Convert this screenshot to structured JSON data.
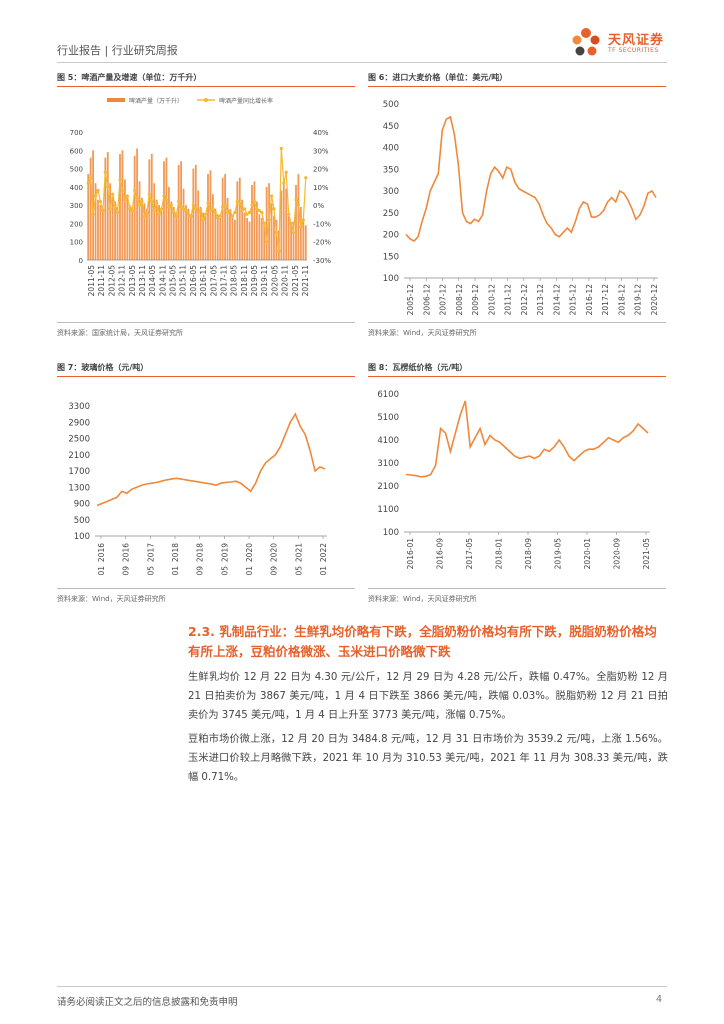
{
  "header": {
    "title": "行业报告 | 行业研究周报"
  },
  "logo": {
    "name_cn": "天风证券",
    "name_en": "TF SECURITIES"
  },
  "figures": {
    "fig5": {
      "title": "图 5：啤酒产量及增速（单位：万千升）",
      "source": "资料来源：国家统计局，天风证券研究所"
    },
    "fig6": {
      "title": "图 6：进口大麦价格（单位：美元/吨）",
      "source": "资料来源：Wind，天风证券研究所"
    },
    "fig7": {
      "title": "图 7：玻璃价格（元/吨）",
      "source": "资料来源：Wind，天风证券研究所"
    },
    "fig8": {
      "title": "图 8：瓦楞纸价格（元/吨）",
      "source": "资料来源：Wind，天风证券研究所"
    }
  },
  "section": {
    "title": "2.3. 乳制品行业：生鲜乳均价略有下跌，全脂奶粉价格均有所下跌，脱脂奶粉价格均有所上涨，豆粕价格微涨、玉米进口价略微下跌",
    "para1": "生鲜乳均价 12 月 22 日为 4.30 元/公斤，12 月 29 日为 4.28 元/公斤，跌幅 0.47%。全脂奶粉 12 月 21 日拍卖价为 3867 美元/吨，1 月 4 日下跌至 3866 美元/吨，跌幅 0.03%。脱脂奶粉 12 月 21 日拍卖价为 3745 美元/吨，1 月 4 日上升至 3773 美元/吨，涨幅 0.75%。",
    "para2": "豆粕市场价微上涨，12 月 20 日为 3484.8 元/吨，12 月 31 日市场价为 3539.2 元/吨，上涨 1.56%。玉米进口价较上月略微下跌，2021 年 10 月为 310.53 美元/吨，2021 年 11 月为 308.33 美元/吨，跌幅 0.71%。"
  },
  "footer": {
    "disclaimer": "请务必阅读正文之后的信息披露和免责申明",
    "page": "4"
  },
  "colors": {
    "accent": "#e8612c",
    "bar": "#f0883a",
    "line2": "#f5b82e"
  },
  "chart_data": [
    {
      "id": "fig5",
      "type": "bar+line",
      "title": "啤酒产量及增速（单位：万千升）",
      "legend": [
        "啤酒产量（万千升）",
        "啤酒产量同比增长率"
      ],
      "y_left": {
        "ticks": [
          0,
          100,
          200,
          300,
          400,
          500,
          600,
          700
        ],
        "lim": [
          0,
          700
        ]
      },
      "y_right": {
        "ticks": [
          "40%",
          "30%",
          "20%",
          "10%",
          "0%",
          "-10%",
          "-20%",
          "-30%"
        ],
        "lim": [
          -30,
          40
        ]
      },
      "x_ticks": [
        "2011-05",
        "2011-11",
        "2012-05",
        "2012-11",
        "2013-05",
        "2013-11",
        "2014-05",
        "2014-11",
        "2015-05",
        "2015-11",
        "2016-05",
        "2016-11",
        "2017-05",
        "2017-11",
        "2018-05",
        "2018-11",
        "2019-05",
        "2019-11",
        "2020-05",
        "2020-11",
        "2021-05",
        "2021-11"
      ],
      "bar_values": [
        470,
        560,
        600,
        420,
        330,
        300,
        280,
        560,
        590,
        420,
        340,
        320,
        290,
        580,
        600,
        440,
        350,
        300,
        290,
        570,
        610,
        430,
        340,
        310,
        280,
        550,
        580,
        420,
        330,
        300,
        270,
        540,
        560,
        400,
        320,
        290,
        260,
        520,
        540,
        390,
        300,
        280,
        250,
        500,
        520,
        380,
        290,
        260,
        240,
        470,
        490,
        360,
        280,
        250,
        230,
        450,
        470,
        340,
        270,
        240,
        220,
        430,
        450,
        330,
        260,
        230,
        210,
        410,
        430,
        320,
        250,
        230,
        200,
        400,
        420,
        310,
        240,
        220,
        160,
        380,
        430,
        390,
        240,
        200,
        210,
        410,
        470,
        290,
        220,
        190
      ],
      "line_values": [
        12,
        15,
        -5,
        5,
        8,
        2,
        -3,
        18,
        10,
        -2,
        6,
        0,
        -4,
        14,
        8,
        3,
        5,
        -2,
        -3,
        8,
        4,
        0,
        2,
        -6,
        -4,
        6,
        2,
        -3,
        1,
        -5,
        -2,
        5,
        3,
        -1,
        0,
        -4,
        -6,
        2,
        -1,
        -2,
        -3,
        -5,
        -6,
        0,
        -2,
        -4,
        -3,
        -8,
        -5,
        1,
        -3,
        -2,
        -4,
        -7,
        -6,
        -1,
        0,
        -4,
        -3,
        -6,
        -4,
        2,
        1,
        -3,
        -2,
        -5,
        -4,
        0,
        2,
        -2,
        -3,
        -4,
        -10,
        -20,
        -8,
        5,
        -2,
        -15,
        -25,
        31,
        12,
        18,
        -5,
        -10,
        -15,
        3,
        0,
        -12,
        -8,
        15
      ]
    },
    {
      "id": "fig6",
      "type": "line",
      "title": "进口大麦价格（单位：美元/吨）",
      "y_ticks": [
        100,
        150,
        200,
        250,
        300,
        350,
        400,
        450,
        500
      ],
      "ylim": [
        100,
        500
      ],
      "x_ticks": [
        "2005-12",
        "2006-12",
        "2007-12",
        "2008-12",
        "2009-12",
        "2010-12",
        "2011-12",
        "2012-12",
        "2013-12",
        "2014-12",
        "2015-12",
        "2016-12",
        "2017-12",
        "2018-12",
        "2019-12",
        "2020-12"
      ],
      "x_range": [
        "2005-12",
        "2021-06"
      ],
      "values": [
        200,
        190,
        185,
        195,
        230,
        260,
        300,
        320,
        340,
        440,
        465,
        470,
        430,
        360,
        250,
        230,
        225,
        235,
        230,
        245,
        300,
        340,
        355,
        345,
        330,
        355,
        350,
        320,
        305,
        300,
        295,
        290,
        285,
        270,
        245,
        225,
        215,
        200,
        195,
        205,
        215,
        205,
        230,
        260,
        275,
        270,
        240,
        240,
        245,
        255,
        275,
        285,
        275,
        300,
        295,
        280,
        260,
        235,
        245,
        265,
        295,
        300,
        285
      ]
    },
    {
      "id": "fig7",
      "type": "line",
      "title": "玻璃价格（元/吨）",
      "y_ticks": [
        100,
        500,
        900,
        1300,
        1700,
        2100,
        2500,
        2900,
        3300
      ],
      "ylim": [
        100,
        3300
      ],
      "x_ticks": [
        "2016-01",
        "2016-09",
        "2017-05",
        "2018-01",
        "2018-09",
        "2019-05",
        "2020-01",
        "2020-09",
        "2021-05",
        "2022-01"
      ],
      "values": [
        850,
        900,
        950,
        1000,
        1050,
        1200,
        1150,
        1250,
        1300,
        1350,
        1380,
        1400,
        1420,
        1450,
        1480,
        1500,
        1520,
        1500,
        1480,
        1460,
        1440,
        1420,
        1400,
        1380,
        1350,
        1400,
        1420,
        1430,
        1450,
        1400,
        1300,
        1200,
        1400,
        1700,
        1900,
        2000,
        2100,
        2300,
        2600,
        2900,
        3100,
        2800,
        2600,
        2200,
        1700,
        1800,
        1750
      ]
    },
    {
      "id": "fig8",
      "type": "line",
      "title": "瓦楞纸价格（元/吨）",
      "y_ticks": [
        100,
        1100,
        2100,
        3100,
        4100,
        5100,
        6100
      ],
      "ylim": [
        100,
        6100
      ],
      "x_ticks": [
        "2016-01",
        "2016-09",
        "2017-05",
        "2018-01",
        "2018-09",
        "2019-05",
        "2020-01",
        "2020-09",
        "2021-05"
      ],
      "values": [
        2600,
        2580,
        2550,
        2500,
        2520,
        2600,
        3000,
        4600,
        4400,
        3600,
        4400,
        5200,
        5800,
        3800,
        4200,
        4600,
        3900,
        4300,
        4100,
        4000,
        3800,
        3600,
        3400,
        3300,
        3350,
        3400,
        3300,
        3400,
        3700,
        3600,
        3800,
        4100,
        3800,
        3400,
        3200,
        3400,
        3600,
        3700,
        3700,
        3800,
        4000,
        4200,
        4100,
        4000,
        4200,
        4300,
        4500,
        4800,
        4600,
        4400
      ]
    }
  ]
}
